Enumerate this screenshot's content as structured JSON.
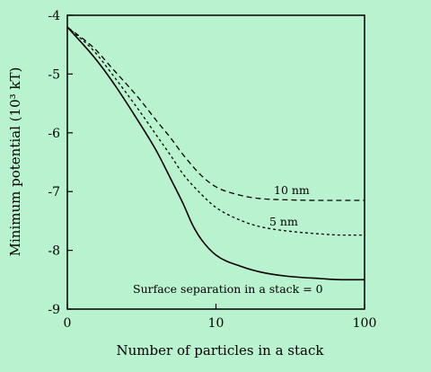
{
  "colors": {
    "background": "#b9f2cf",
    "ink": "#000000"
  },
  "chart_data": {
    "type": "line",
    "title": "",
    "xlabel": "Number of particles in a stack",
    "ylabel": "Minimum potential (10³ kT)",
    "x_scale": "log",
    "xlim": [
      1,
      100
    ],
    "ylim": [
      -9,
      -4
    ],
    "grid": false,
    "x_ticks": [
      {
        "value": 1,
        "label": "0"
      },
      {
        "value": 10,
        "label": "10"
      },
      {
        "value": 100,
        "label": "100"
      }
    ],
    "y_ticks": [
      {
        "value": -4,
        "label": "-4"
      },
      {
        "value": -5,
        "label": "-5"
      },
      {
        "value": -6,
        "label": "-6"
      },
      {
        "value": -7,
        "label": "-7"
      },
      {
        "value": -8,
        "label": "-8"
      },
      {
        "value": -9,
        "label": "-9"
      }
    ],
    "series": [
      {
        "name": "Surface separation in a stack = 0",
        "style": "solid",
        "x": [
          1,
          1.5,
          2,
          3,
          4,
          5,
          6,
          7,
          8,
          10,
          15,
          20,
          30,
          50,
          70,
          100
        ],
        "y": [
          -4.2,
          -4.7,
          -5.12,
          -5.8,
          -6.32,
          -6.8,
          -7.2,
          -7.58,
          -7.82,
          -8.08,
          -8.28,
          -8.37,
          -8.44,
          -8.48,
          -8.5,
          -8.5
        ]
      },
      {
        "name": "5 nm",
        "style": "dashed-short",
        "x": [
          1,
          1.5,
          2,
          3,
          4,
          5,
          6,
          8,
          10,
          15,
          20,
          30,
          50,
          70,
          100
        ],
        "y": [
          -4.2,
          -4.6,
          -5.0,
          -5.6,
          -6.05,
          -6.4,
          -6.7,
          -7.05,
          -7.27,
          -7.5,
          -7.6,
          -7.67,
          -7.72,
          -7.74,
          -7.74
        ]
      },
      {
        "name": "10 nm",
        "style": "dashed",
        "x": [
          1,
          1.5,
          2,
          3,
          4,
          5,
          6,
          8,
          10,
          15,
          20,
          30,
          50,
          70,
          100
        ],
        "y": [
          -4.2,
          -4.55,
          -4.9,
          -5.4,
          -5.8,
          -6.1,
          -6.37,
          -6.73,
          -6.92,
          -7.07,
          -7.12,
          -7.14,
          -7.15,
          -7.15,
          -7.15
        ]
      }
    ],
    "annotations": [
      {
        "text": "10 nm",
        "series": "10 nm"
      },
      {
        "text": "5 nm",
        "series": "5 nm"
      },
      {
        "text": "Surface separation in a stack = 0",
        "series": "Surface separation in a stack = 0"
      }
    ]
  }
}
